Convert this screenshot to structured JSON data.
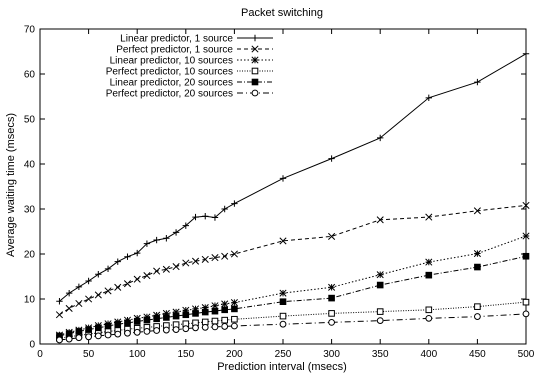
{
  "chart_data": {
    "type": "line",
    "title": "Packet switching",
    "xlabel": "Prediction interval (msecs)",
    "ylabel": "Average waiting time (msecs)",
    "xlim": [
      0,
      500
    ],
    "ylim": [
      0,
      70
    ],
    "xticks": [
      0,
      50,
      100,
      150,
      200,
      250,
      300,
      350,
      400,
      450,
      500
    ],
    "yticks": [
      0,
      10,
      20,
      30,
      40,
      50,
      60,
      70
    ],
    "grid": false,
    "legend_position": "top-left",
    "series": [
      {
        "name": "Linear predictor, 1 source",
        "marker": "plus",
        "dash": "solid",
        "x": [
          20,
          30,
          40,
          50,
          60,
          70,
          80,
          90,
          100,
          110,
          120,
          130,
          140,
          150,
          160,
          170,
          180,
          190,
          200,
          250,
          300,
          350,
          400,
          450,
          500
        ],
        "y": [
          9.5,
          11.3,
          12.7,
          14.0,
          15.5,
          16.7,
          18.3,
          19.4,
          20.2,
          22.3,
          23.1,
          23.5,
          24.8,
          26.3,
          28.2,
          28.4,
          28.1,
          30.0,
          31.2,
          36.8,
          41.2,
          45.8,
          54.7,
          58.2,
          64.5
        ]
      },
      {
        "name": "Perfect predictor, 1 source",
        "marker": "cross",
        "dash": "dashed",
        "x": [
          20,
          30,
          40,
          50,
          60,
          70,
          80,
          90,
          100,
          110,
          120,
          130,
          140,
          150,
          160,
          170,
          180,
          190,
          200,
          250,
          300,
          350,
          400,
          450,
          500
        ],
        "y": [
          6.5,
          7.9,
          9.0,
          10.0,
          10.9,
          11.8,
          12.6,
          13.4,
          14.4,
          15.2,
          16.2,
          16.6,
          17.2,
          18.0,
          18.4,
          18.8,
          19.2,
          19.5,
          20.0,
          22.9,
          23.9,
          27.6,
          28.2,
          29.6,
          30.8
        ]
      },
      {
        "name": "Linear predictor, 10 sources",
        "marker": "star",
        "dash": "dotted",
        "x": [
          20,
          30,
          40,
          50,
          60,
          70,
          80,
          90,
          100,
          110,
          120,
          130,
          140,
          150,
          160,
          170,
          180,
          190,
          200,
          250,
          300,
          350,
          400,
          450,
          500
        ],
        "y": [
          2.0,
          2.6,
          3.1,
          3.6,
          4.1,
          4.5,
          4.9,
          5.3,
          5.7,
          6.0,
          6.4,
          6.8,
          7.1,
          7.5,
          7.8,
          8.1,
          8.5,
          8.9,
          9.2,
          11.3,
          12.6,
          15.4,
          18.2,
          20.1,
          24.0
        ]
      },
      {
        "name": "Perfect predictor, 10 sources",
        "marker": "square-open",
        "dash": "fine-dotted",
        "x": [
          20,
          30,
          40,
          50,
          60,
          70,
          80,
          90,
          100,
          110,
          120,
          130,
          140,
          150,
          160,
          170,
          180,
          190,
          200,
          250,
          300,
          350,
          400,
          450,
          500
        ],
        "y": [
          1.3,
          1.6,
          1.9,
          2.2,
          2.5,
          2.8,
          3.0,
          3.3,
          3.5,
          3.7,
          3.9,
          4.1,
          4.3,
          4.5,
          4.7,
          4.9,
          5.1,
          5.3,
          5.5,
          6.2,
          6.8,
          7.2,
          7.6,
          8.3,
          9.3
        ]
      },
      {
        "name": "Linear predictor, 20 sources",
        "marker": "square-filled",
        "dash": "dashdot",
        "x": [
          20,
          30,
          40,
          50,
          60,
          70,
          80,
          90,
          100,
          110,
          120,
          130,
          140,
          150,
          160,
          170,
          180,
          190,
          200,
          250,
          300,
          350,
          400,
          450,
          500
        ],
        "y": [
          1.8,
          2.3,
          2.8,
          3.2,
          3.6,
          4.0,
          4.4,
          4.7,
          5.0,
          5.3,
          5.6,
          5.9,
          6.2,
          6.5,
          6.8,
          7.1,
          7.3,
          7.6,
          7.8,
          9.4,
          10.2,
          13.1,
          15.3,
          17.1,
          19.5
        ]
      },
      {
        "name": "Perfect predictor, 20 sources",
        "marker": "circle-open",
        "dash": "dashdot-long",
        "x": [
          20,
          30,
          40,
          50,
          60,
          70,
          80,
          90,
          100,
          110,
          120,
          130,
          140,
          150,
          160,
          170,
          180,
          190,
          200,
          250,
          300,
          350,
          400,
          450,
          500
        ],
        "y": [
          0.9,
          1.1,
          1.4,
          1.6,
          1.8,
          2.0,
          2.2,
          2.4,
          2.6,
          2.8,
          3.0,
          3.1,
          3.2,
          3.4,
          3.6,
          3.7,
          3.8,
          3.9,
          4.0,
          4.4,
          4.8,
          5.2,
          5.7,
          6.1,
          6.7
        ]
      }
    ]
  }
}
